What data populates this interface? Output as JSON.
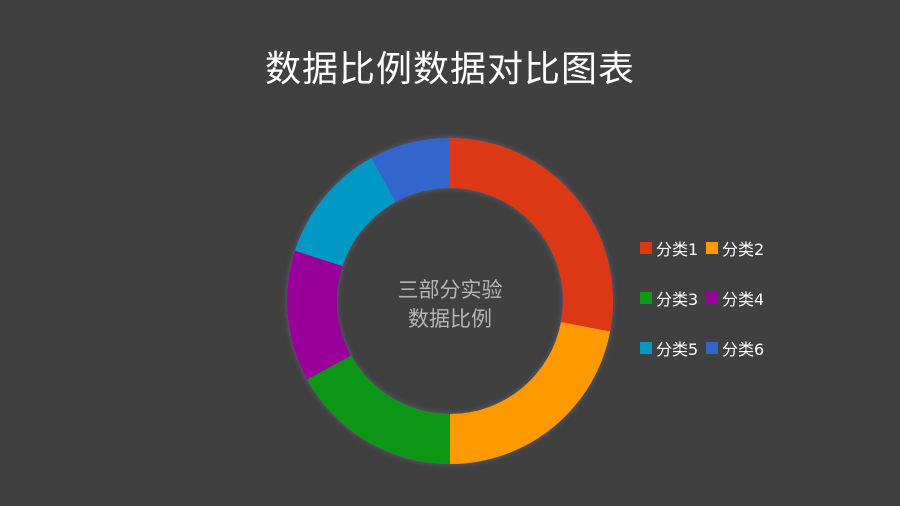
{
  "title": "数据比例数据对比图表",
  "center_label": {
    "line1": "三部分实验",
    "line2": "数据比例"
  },
  "chart_data": {
    "type": "pie",
    "donut": true,
    "categories": [
      "分类1",
      "分类2",
      "分类3",
      "分类4",
      "分类5",
      "分类6"
    ],
    "values": [
      28,
      22,
      17,
      13,
      12,
      8
    ],
    "colors": [
      "#dc3912",
      "#ff9900",
      "#109618",
      "#990099",
      "#0099c6",
      "#3366cc"
    ],
    "legend_position": "right",
    "start": "top-clockwise"
  }
}
